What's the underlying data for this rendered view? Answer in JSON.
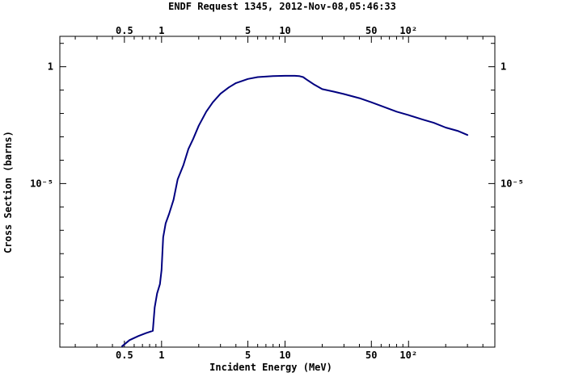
{
  "chart_data": {
    "type": "line",
    "title": "ENDF Request 1345, 2012-Nov-08,05:46:33",
    "xlabel": "Incident Energy (MeV)",
    "ylabel": "Cross Section (barns)",
    "xscale": "log",
    "yscale": "log",
    "xlim": [
      0.15,
      500
    ],
    "ylim": [
      1e-12,
      20
    ],
    "x_ticks": [
      {
        "value": 0.5,
        "label": "0.5"
      },
      {
        "value": 1,
        "label": "1"
      },
      {
        "value": 5,
        "label": "5"
      },
      {
        "value": 10,
        "label": "10"
      },
      {
        "value": 50,
        "label": "50"
      },
      {
        "value": 100,
        "label": "10²"
      }
    ],
    "y_ticks": [
      {
        "value": 1,
        "label": "1"
      },
      {
        "value": 1e-05,
        "label": "10⁻⁵"
      }
    ],
    "grid": false,
    "series_color": "#000080",
    "series": [
      {
        "x": [
          0.48,
          0.55,
          0.65,
          0.75,
          0.85,
          0.88,
          0.92,
          0.97,
          1.0,
          1.03,
          1.08,
          1.15,
          1.25,
          1.35,
          1.5,
          1.65,
          1.8,
          2.0,
          2.3,
          2.6,
          3.0,
          3.5,
          4.0,
          5.0,
          6.0,
          8.0,
          10.0,
          12.0,
          13.0,
          14.0,
          15.0,
          17.0,
          20.0,
          25.0,
          30.0,
          40.0,
          50.0,
          60.0,
          80.0,
          100.0,
          130.0,
          160.0,
          200.0,
          250.0,
          300.0
        ],
        "y": [
          1.1e-12,
          2e-12,
          3e-12,
          4e-12,
          5e-12,
          5e-11,
          2e-10,
          5e-10,
          2e-09,
          5e-08,
          2e-07,
          5e-07,
          2e-06,
          1.5e-05,
          6e-05,
          0.0003,
          0.0008,
          0.003,
          0.012,
          0.03,
          0.07,
          0.13,
          0.2,
          0.3,
          0.36,
          0.4,
          0.41,
          0.41,
          0.4,
          0.36,
          0.28,
          0.18,
          0.11,
          0.085,
          0.068,
          0.045,
          0.03,
          0.021,
          0.012,
          0.0085,
          0.0055,
          0.004,
          0.0025,
          0.0018,
          0.0012
        ]
      }
    ]
  }
}
